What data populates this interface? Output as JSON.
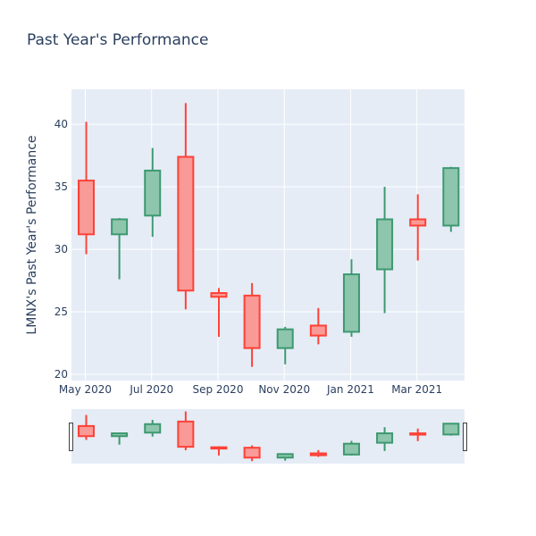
{
  "chart_data": {
    "type": "candlestick",
    "title": "Past Year's Performance",
    "ylabel": "LMNX's Past Year's Performance",
    "xlabel": "",
    "ylim": [
      19.5,
      42.8
    ],
    "yticks": [
      20,
      25,
      30,
      35,
      40
    ],
    "xticks": [
      "May 2020",
      "Jul 2020",
      "Sep 2020",
      "Nov 2020",
      "Jan 2021",
      "Mar 2021"
    ],
    "grid": true,
    "rangeslider": true,
    "colors": {
      "increasing_line": "#3d9970",
      "increasing_fill": "#8ec5ad",
      "decreasing_line": "#ff4136",
      "decreasing_fill": "#f99a96",
      "plot_bg": "#e5ecf6",
      "title_color": "#2a3f5f"
    },
    "candles": [
      {
        "month": "May 2020",
        "open": 35.5,
        "high": 40.2,
        "low": 29.6,
        "close": 31.2
      },
      {
        "month": "Jun 2020",
        "open": 31.2,
        "high": 32.5,
        "low": 27.6,
        "close": 32.4
      },
      {
        "month": "Jul 2020",
        "open": 32.7,
        "high": 38.1,
        "low": 31.0,
        "close": 36.3
      },
      {
        "month": "Aug 2020",
        "open": 37.4,
        "high": 41.7,
        "low": 25.2,
        "close": 26.7
      },
      {
        "month": "Sep 2020",
        "open": 26.5,
        "high": 26.9,
        "low": 23.0,
        "close": 26.2
      },
      {
        "month": "Oct 2020",
        "open": 26.3,
        "high": 27.3,
        "low": 20.6,
        "close": 22.1
      },
      {
        "month": "Nov 2020",
        "open": 22.1,
        "high": 23.8,
        "low": 20.8,
        "close": 23.6
      },
      {
        "month": "Dec 2020",
        "open": 23.9,
        "high": 25.3,
        "low": 22.4,
        "close": 23.1
      },
      {
        "month": "Jan 2021",
        "open": 23.4,
        "high": 29.2,
        "low": 23.0,
        "close": 28.0
      },
      {
        "month": "Feb 2021",
        "open": 28.4,
        "high": 35.0,
        "low": 24.9,
        "close": 32.4
      },
      {
        "month": "Mar 2021",
        "open": 32.4,
        "high": 34.4,
        "low": 29.1,
        "close": 31.9
      },
      {
        "month": "Apr 2021",
        "open": 31.9,
        "high": 36.6,
        "low": 31.4,
        "close": 36.5
      }
    ]
  }
}
